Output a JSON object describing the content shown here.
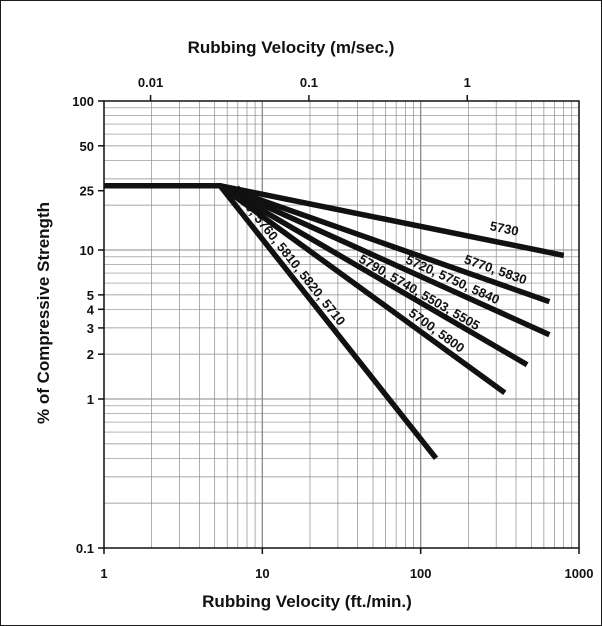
{
  "chart_data": {
    "type": "line",
    "x_scale": "log",
    "y_scale": "log",
    "xlabel": "Rubbing Velocity (ft./min.)",
    "xlabel_top": "Rubbing Velocity (m/sec.)",
    "ylabel": "% of Compressive Strength",
    "xlim": [
      1,
      1000
    ],
    "ylim": [
      0.1,
      100
    ],
    "grid": true,
    "x_ticks_bottom": [
      "1",
      "10",
      "100",
      "1000"
    ],
    "x_ticks_top": [
      "0.01",
      "0.1",
      "1"
    ],
    "y_ticks": [
      "100",
      "50",
      "25",
      "10",
      "5",
      "4",
      "3",
      "2",
      "1",
      "0.1"
    ],
    "series": [
      {
        "name": "5730",
        "x": [
          1,
          5.4,
          800
        ],
        "y": [
          27,
          27,
          9.2
        ]
      },
      {
        "name": "5770, 5830",
        "x": [
          1,
          5.4,
          650
        ],
        "y": [
          27,
          27,
          4.5
        ]
      },
      {
        "name": "5720, 5750, 5840",
        "x": [
          1,
          5.4,
          650
        ],
        "y": [
          27,
          27,
          2.7
        ]
      },
      {
        "name": "5790, 5740, 5503, 5505",
        "x": [
          1,
          5.4,
          470
        ],
        "y": [
          27,
          27,
          1.7
        ]
      },
      {
        "name": "5700, 5800",
        "x": [
          1,
          5.4,
          340
        ],
        "y": [
          27,
          27,
          1.1
        ]
      },
      {
        "name": "5780, 5760, 5810, 5820, 5710",
        "x": [
          1,
          5.4,
          125
        ],
        "y": [
          27,
          27,
          0.4
        ]
      }
    ]
  }
}
